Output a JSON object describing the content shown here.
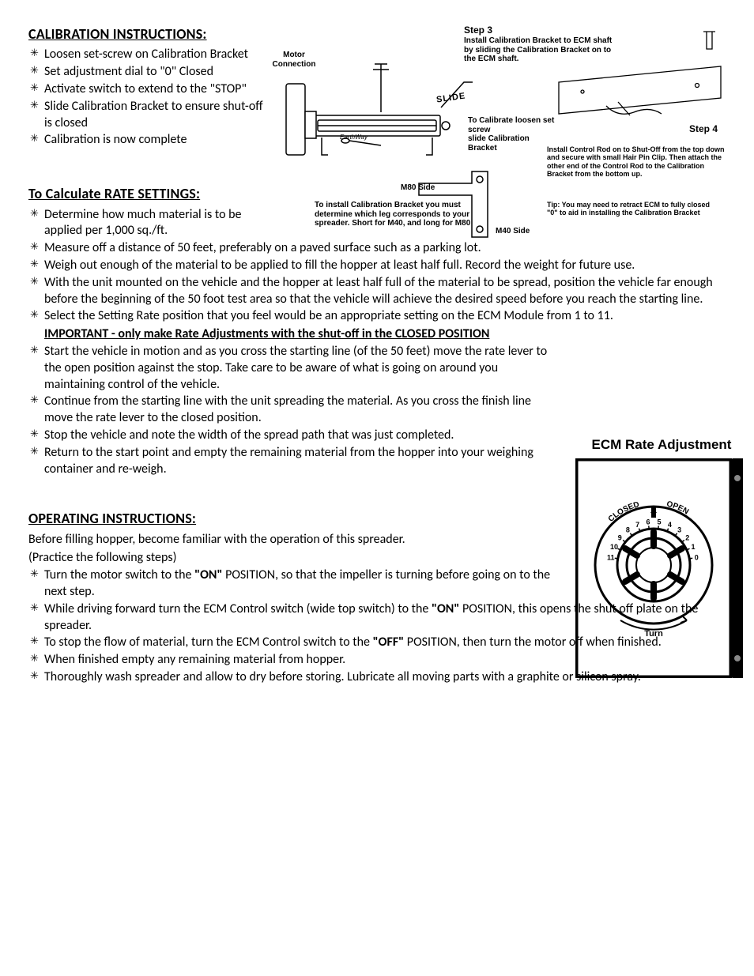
{
  "calibration": {
    "heading": "CALIBRATION INSTRUCTIONS:",
    "items": [
      "Loosen set-screw on Calibration Bracket",
      "Set adjustment dial to \"0\" Closed",
      "Activate switch to extend to the \"STOP\"",
      "Slide Calibration Bracket to ensure shut-off is closed",
      "Calibration is now complete"
    ]
  },
  "rate": {
    "heading": "To Calculate RATE SETTINGS:",
    "items_narrow": [
      "Determine how much material is to be applied per 1,000 sq./ft."
    ],
    "items_wide": [
      "Measure off a distance of 50 feet, preferably on a paved surface such as a parking lot.",
      "Weigh out enough of the material to be applied to fill the hopper at least half full. Record the weight for future use.",
      "With the unit mounted on the vehicle and the hopper at least half full of the material to be spread, position the vehicle far enough before the beginning of the 50 foot test area so that the vehicle will achieve the desired speed before you reach the starting line.",
      "Select the Setting Rate position that you feel would be an appropriate setting on the ECM Module from 1 to 11."
    ],
    "important": "IMPORTANT - only make Rate Adjustments with the shut-off in the CLOSED POSITION",
    "items_after": [
      "Start the vehicle in motion and as you cross the starting line (of the 50 feet) move the rate lever to the open position against the stop. Take care to be aware of what is going on around you maintaining control of the vehicle.",
      "Continue from the starting line with the unit spreading the material. As you cross the finish line move the rate lever to the closed position.",
      "Stop the vehicle and note the width of the spread path that was just completed.",
      "Return to the start point and empty the remaining material from the hopper into your weighing container and re-weigh."
    ]
  },
  "operating": {
    "heading": "OPERATING  INSTRUCTIONS:",
    "intro1": "Before filling hopper, become familiar with the operation of this spreader.",
    "intro2": "(Practice the following steps)",
    "items": [
      {
        "pre": "Turn the motor switch to the ",
        "bold": "\"ON\"",
        "post": " POSITION, so that the impeller is turning before going on to the next step."
      },
      {
        "pre": "While driving forward turn the ECM Control switch (wide top switch) to the ",
        "bold": "\"ON\"",
        "post": " POSITION, this opens the shut off plate on the spreader."
      },
      {
        "pre": "To stop the flow of material, turn the ECM Control switch to the ",
        "bold": "\"OFF\"",
        "post": " POSITION, then turn the motor off when finished."
      },
      {
        "pre": "When finished empty any remaining material from hopper.",
        "bold": "",
        "post": ""
      },
      {
        "pre": "Thoroughly wash spreader and allow to dry before storing.  Lubricate all moving parts with a graphite or silicon spray.",
        "bold": "",
        "post": ""
      }
    ]
  },
  "diagram": {
    "motor_conn": "Motor\nConnection",
    "earthway": "EarthWay",
    "slide": "SLIDE",
    "step3_title": "Step 3",
    "step3_text": "Install Calibration Bracket to ECM shaft by sliding the Calibration Bracket on to the ECM shaft.",
    "calibrate_text": "To Calibrate loosen set screw\nslide Calibration Bracket",
    "m80": "M80 Side",
    "m40": "M40 Side",
    "install_note": "To install Calibration Bracket you must determine which leg corresponds to your spreader.  Short for M40, and long for M80",
    "step4_title": "Step 4",
    "step4_text": "Install Control Rod on to Shut-Off from the top down and secure with small Hair Pin Clip.  Then attach the other end of the Control Rod to the Calibration Bracket from the bottom up.",
    "tip_label": "Tip:",
    "tip_text": " You may need to retract ECM to fully closed \"0\" to aid in installing the Calibration Bracket"
  },
  "ecm": {
    "title": "ECM Rate Adjustment",
    "closed": "CLOSED",
    "open": "OPEN",
    "turn": "Turn",
    "numbers": [
      "11",
      "10",
      "9",
      "8",
      "7",
      "6",
      "5",
      "4",
      "3",
      "2",
      "1",
      "0"
    ],
    "frame_color": "#000000",
    "bg_color": "#ffffff"
  }
}
